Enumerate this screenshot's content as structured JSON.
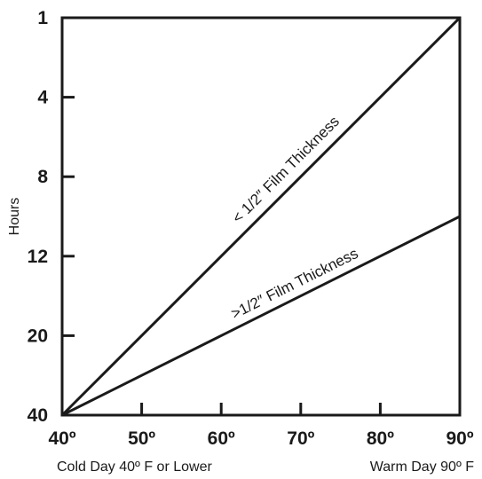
{
  "chart_data": {
    "type": "line",
    "title": "",
    "ylabel": "Hours",
    "x_annotations": {
      "left": "Cold Day 40º F or Lower",
      "right": "Warm Day 90º F"
    },
    "x_ticks": [
      {
        "value": 40,
        "label": "40º"
      },
      {
        "value": 50,
        "label": "50º"
      },
      {
        "value": 60,
        "label": "60º"
      },
      {
        "value": 70,
        "label": "70º"
      },
      {
        "value": 80,
        "label": "80º"
      },
      {
        "value": 90,
        "label": "90º"
      }
    ],
    "y_ticks": [
      {
        "value": 1,
        "label": "1"
      },
      {
        "value": 4,
        "label": "4"
      },
      {
        "value": 8,
        "label": "8"
      },
      {
        "value": 12,
        "label": "12"
      },
      {
        "value": 20,
        "label": "20"
      },
      {
        "value": 40,
        "label": "40"
      }
    ],
    "y_scale": "categorical-ticks, inverted (1 at top, 40 at bottom)",
    "xlim": [
      40,
      90
    ],
    "grid": false,
    "legend": "none",
    "series": [
      {
        "name": "< 1/2″ Film Thickness",
        "x": [
          40,
          90
        ],
        "y": [
          40,
          1
        ],
        "color": "#1a1a1a"
      },
      {
        "name": ">1/2″ Film Thickness",
        "x": [
          40,
          90
        ],
        "y": [
          40,
          10
        ],
        "color": "#1a1a1a"
      }
    ]
  }
}
